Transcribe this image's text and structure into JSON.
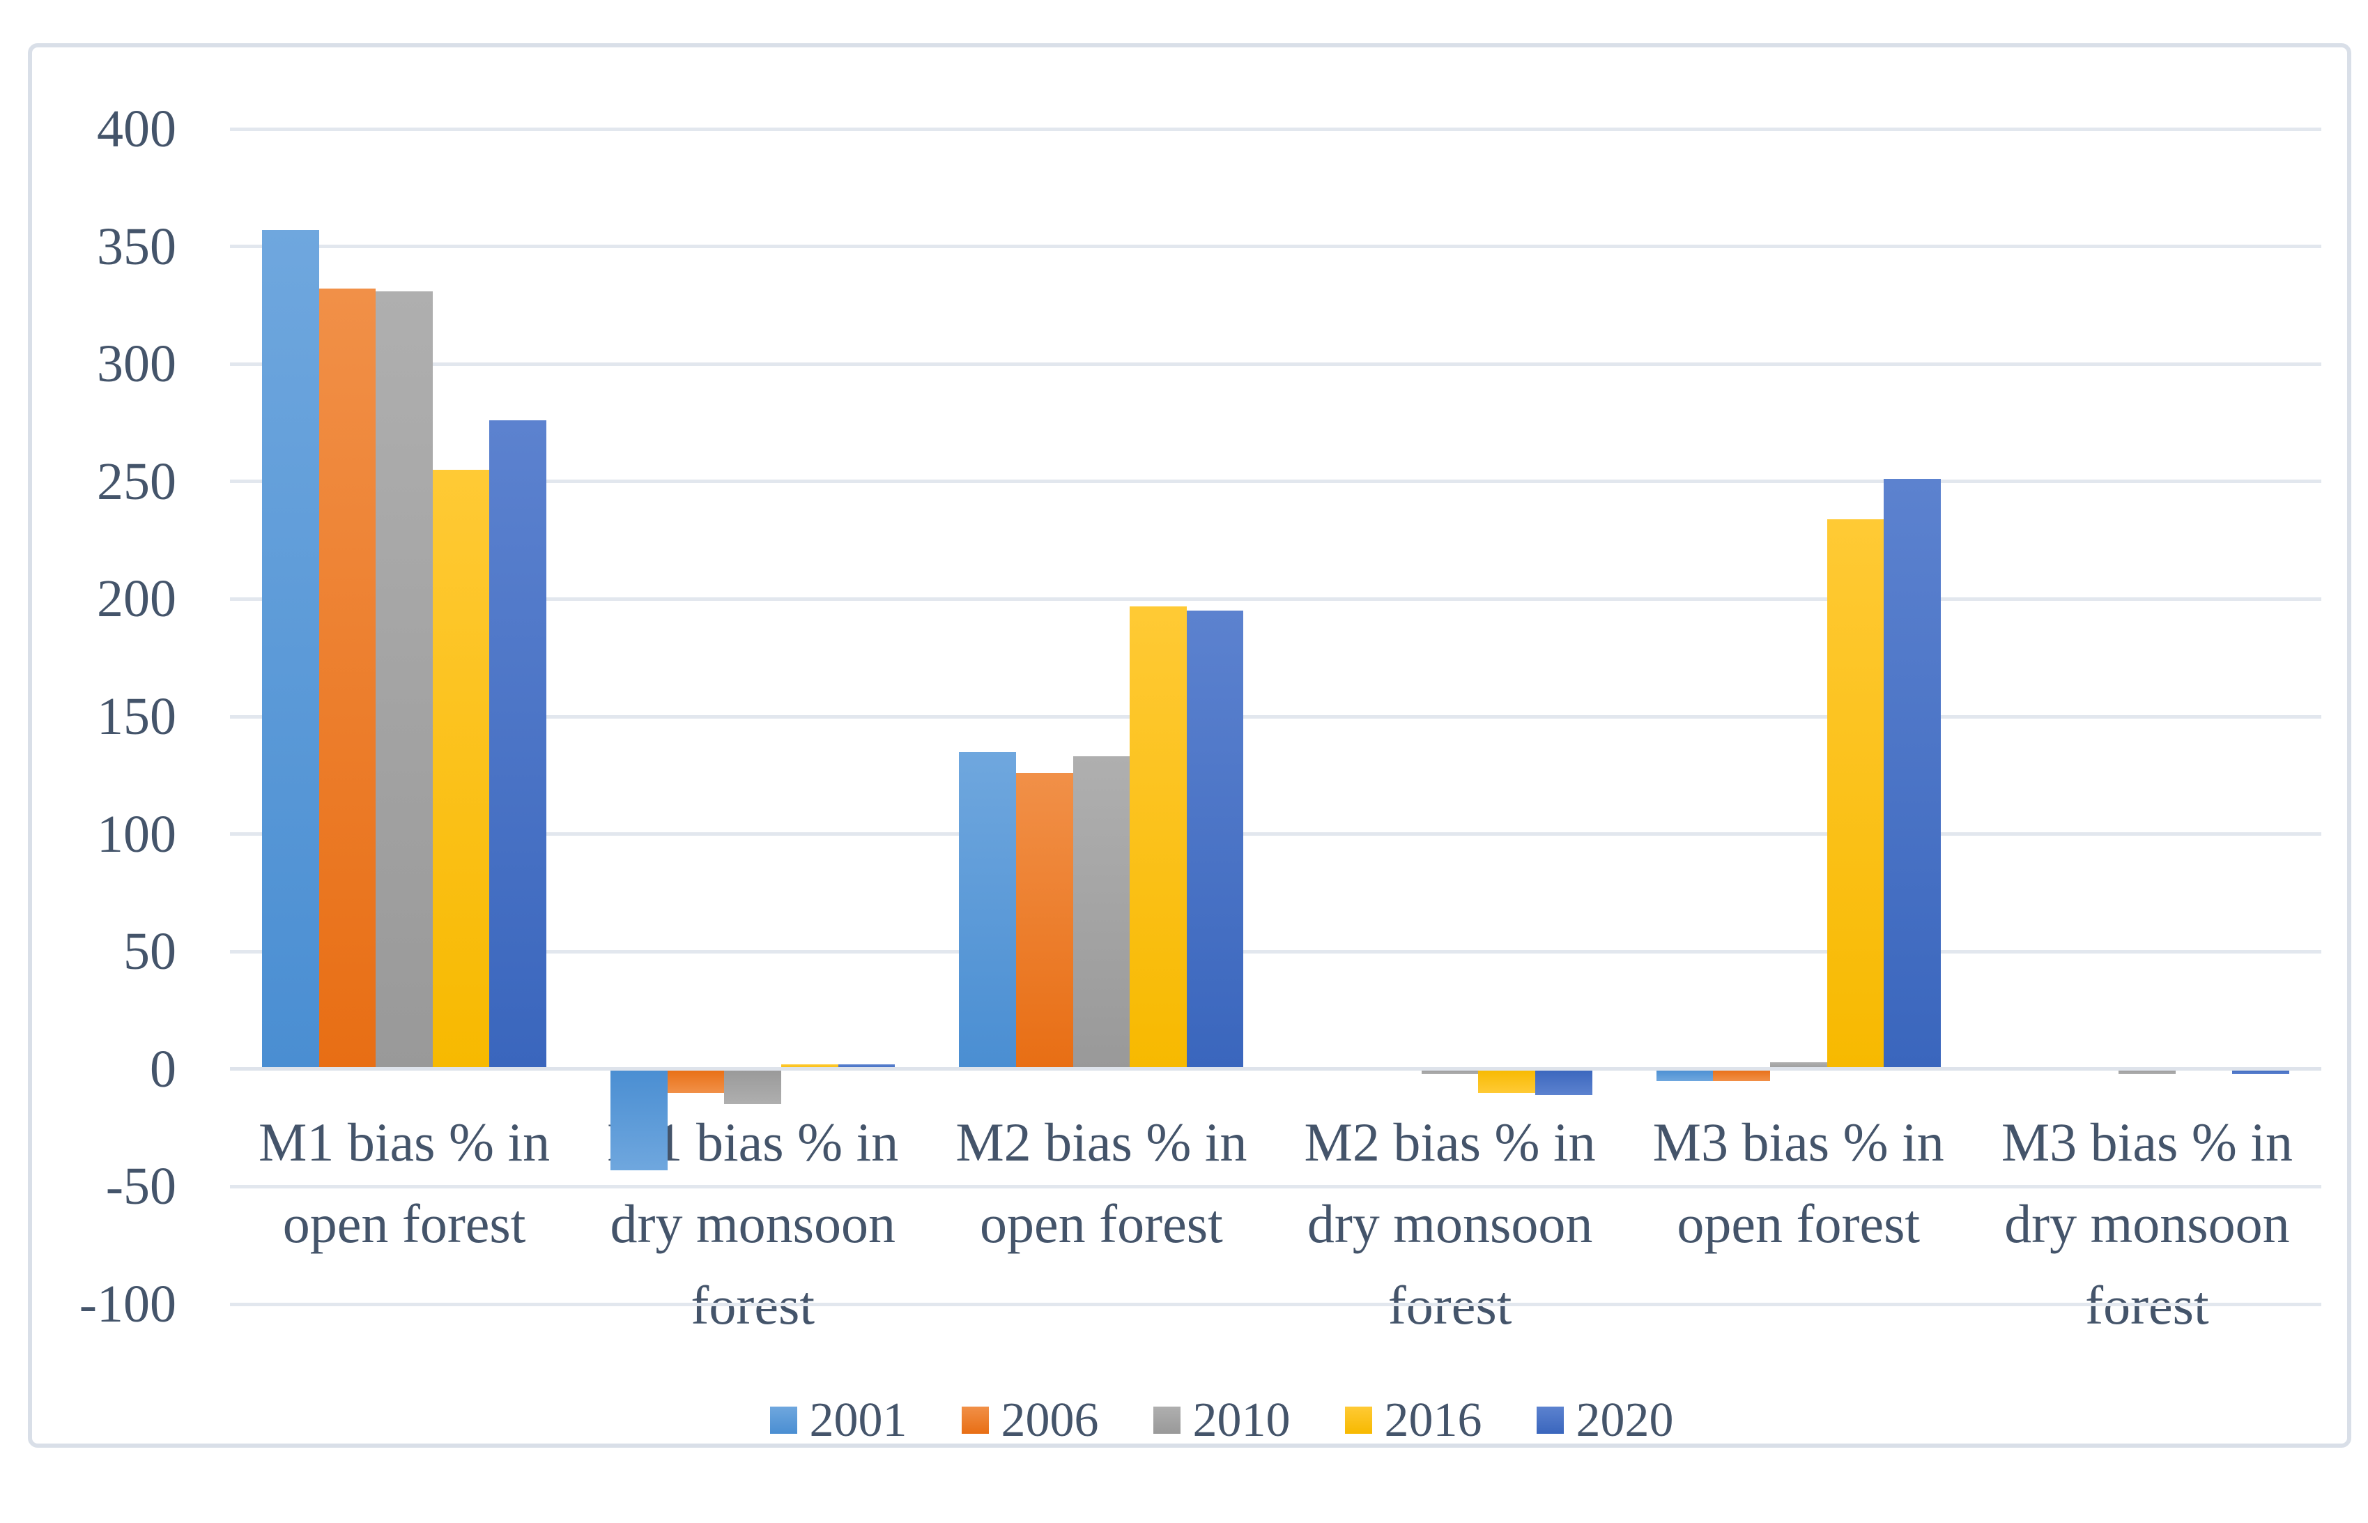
{
  "figure": {
    "background": "#FFFFFF",
    "border_color": "#D9DFE8",
    "text_color": "#44546A",
    "gridline_color": "#E2E7EE"
  },
  "chart_data": {
    "type": "bar",
    "title": "",
    "xlabel": "",
    "ylabel": "",
    "ylim": [
      -100,
      400
    ],
    "y_tick_step": 50,
    "y_ticks": [
      400,
      350,
      300,
      250,
      200,
      150,
      100,
      50,
      0,
      -50,
      -100
    ],
    "grid": "horizontal",
    "legend_position": "bottom",
    "categories": [
      [
        "M1 bias % in",
        "open forest"
      ],
      [
        "M1 bias % in",
        "dry monsoon",
        "forest"
      ],
      [
        "M2 bias % in",
        "open forest"
      ],
      [
        "M2 bias % in",
        "dry monsoon",
        "forest"
      ],
      [
        "M3 bias % in",
        "open forest"
      ],
      [
        "M3 bias % in",
        "dry monsoon",
        "forest"
      ]
    ],
    "series": [
      {
        "name": "2001",
        "color": "#5B9BD5",
        "gradient_top": "#6FA7DE",
        "gradient_bottom": "#4A8ED2",
        "values": [
          357,
          -43,
          135,
          0,
          -5,
          0
        ]
      },
      {
        "name": "2006",
        "color": "#ED7D31",
        "gradient_top": "#F19048",
        "gradient_bottom": "#E86E14",
        "values": [
          332,
          -10,
          126,
          0,
          -5,
          0
        ]
      },
      {
        "name": "2010",
        "color": "#A5A5A5",
        "gradient_top": "#AFAFAF",
        "gradient_bottom": "#999999",
        "values": [
          331,
          -15,
          133,
          -2,
          3,
          -2
        ]
      },
      {
        "name": "2016",
        "color": "#FFC000",
        "gradient_top": "#FFCA35",
        "gradient_bottom": "#F7B900",
        "values": [
          255,
          2,
          197,
          -10,
          234,
          0
        ]
      },
      {
        "name": "2020",
        "color": "#4472C4",
        "gradient_top": "#5C82CF",
        "gradient_bottom": "#3A66BD",
        "values": [
          276,
          2,
          195,
          -11,
          251,
          -2
        ]
      }
    ]
  }
}
